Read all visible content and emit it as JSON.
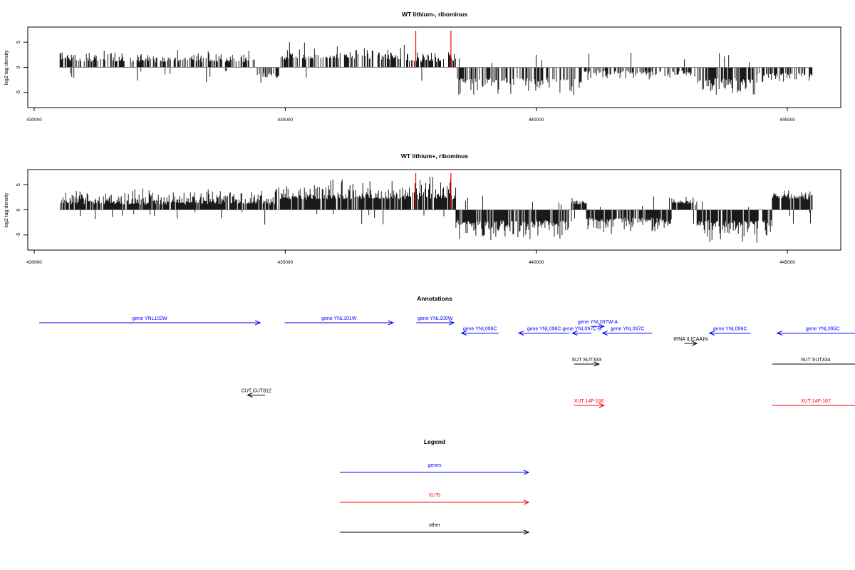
{
  "chart_data": [
    {
      "type": "bar",
      "title": "WT lithium-, ribominus",
      "ylabel": "log2 tag density",
      "xlim": [
        430000,
        446000
      ],
      "ylim": [
        -8,
        8
      ],
      "x_ticks": [
        "430000",
        "435000",
        "440000",
        "445000"
      ],
      "y_ticks": [
        "-5",
        "0",
        "5"
      ],
      "data_range": [
        430500,
        445500
      ],
      "segments": [
        {
          "from": 430500,
          "to": 434400,
          "dir": 1,
          "min": 1,
          "max": 3.5
        },
        {
          "from": 434400,
          "to": 434900,
          "dir": -1,
          "min": 1,
          "max": 3
        },
        {
          "from": 434900,
          "to": 437400,
          "dir": 1,
          "min": 1.5,
          "max": 5
        },
        {
          "from": 437400,
          "to": 438400,
          "dir": 1,
          "min": 1,
          "max": 3.5
        },
        {
          "from": 438400,
          "to": 440900,
          "dir": -1,
          "min": 2,
          "max": 6
        },
        {
          "from": 440900,
          "to": 443200,
          "dir": -1,
          "min": 0.5,
          "max": 2.5
        },
        {
          "from": 443200,
          "to": 444400,
          "dir": -1,
          "min": 2,
          "max": 7
        },
        {
          "from": 444400,
          "to": 445500,
          "dir": -1,
          "min": 1,
          "max": 3
        }
      ],
      "markers": [
        437600,
        438300
      ],
      "marker_color": "#ff0000"
    },
    {
      "type": "bar",
      "title": "WT lithium+, ribominus",
      "ylabel": "log2 tag density",
      "xlim": [
        430000,
        446000
      ],
      "ylim": [
        -8,
        8
      ],
      "x_ticks": [
        "430000",
        "435000",
        "440000",
        "445000"
      ],
      "y_ticks": [
        "-5",
        "0",
        "5"
      ],
      "data_range": [
        430500,
        445500
      ],
      "segments": [
        {
          "from": 430500,
          "to": 434800,
          "dir": 1,
          "min": 1,
          "max": 4.5
        },
        {
          "from": 434800,
          "to": 437400,
          "dir": 1,
          "min": 2,
          "max": 6.5
        },
        {
          "from": 437400,
          "to": 438400,
          "dir": 1,
          "min": 2,
          "max": 7.5
        },
        {
          "from": 438400,
          "to": 440700,
          "dir": -1,
          "min": 2,
          "max": 7
        },
        {
          "from": 440700,
          "to": 441000,
          "dir": 1,
          "min": 1,
          "max": 2.5
        },
        {
          "from": 441000,
          "to": 442700,
          "dir": -1,
          "min": 1.5,
          "max": 5
        },
        {
          "from": 442700,
          "to": 443200,
          "dir": 1,
          "min": 1,
          "max": 2.5
        },
        {
          "from": 443200,
          "to": 444700,
          "dir": -1,
          "min": 2,
          "max": 7
        },
        {
          "from": 444700,
          "to": 445500,
          "dir": 1,
          "min": 2,
          "max": 4
        }
      ],
      "markers": [
        437600,
        438300
      ],
      "marker_color": "#ff0000"
    }
  ],
  "annotations": {
    "title": "Annotations",
    "xlim": [
      430000,
      446000
    ],
    "features": [
      {
        "label": "gene YNL102W",
        "start": 430100,
        "end": 434500,
        "row": 0,
        "strand": "+",
        "kind": "gene"
      },
      {
        "label": "gene YNL101W",
        "start": 434990,
        "end": 437150,
        "row": 0,
        "strand": "+",
        "kind": "gene"
      },
      {
        "label": "gene YNL100W",
        "start": 437610,
        "end": 438360,
        "row": 0,
        "strand": "+",
        "kind": "gene"
      },
      {
        "label": "gene YNL099C",
        "start": 438510,
        "end": 439250,
        "row": 1,
        "strand": "-",
        "kind": "gene"
      },
      {
        "label": "gene YNL098C",
        "start": 439650,
        "end": 440660,
        "row": 1,
        "strand": "-",
        "kind": "gene"
      },
      {
        "label": "gene YNL097C-B",
        "start": 440720,
        "end": 441100,
        "row": 1,
        "strand": "-",
        "kind": "gene"
      },
      {
        "label": "gene YNL097W-A",
        "start": 441100,
        "end": 441350,
        "row": 0.35,
        "strand": "+",
        "kind": "gene"
      },
      {
        "label": "gene YNL097C",
        "start": 441320,
        "end": 442310,
        "row": 1,
        "strand": "-",
        "kind": "gene"
      },
      {
        "label": "tRNA tL(CAA)N",
        "start": 442950,
        "end": 443200,
        "row": 2,
        "strand": "+",
        "kind": "other"
      },
      {
        "label": "gene YNL096C",
        "start": 443450,
        "end": 444270,
        "row": 1,
        "strand": "-",
        "kind": "gene"
      },
      {
        "label": "gene YNL095C",
        "start": 444800,
        "end": 446600,
        "row": 1,
        "strand": "-",
        "kind": "gene"
      },
      {
        "label": "SUT SUT333",
        "start": 440750,
        "end": 441250,
        "row": 4,
        "strand": "+",
        "kind": "other"
      },
      {
        "label": "SUT SUT334",
        "start": 444700,
        "end": 446600,
        "row": 4,
        "strand": "+",
        "kind": "other"
      },
      {
        "label": "CUT CUT812",
        "start": 434250,
        "end": 434600,
        "row": 7,
        "strand": "-",
        "kind": "other"
      },
      {
        "label": "XUT 14F-166",
        "start": 440750,
        "end": 441350,
        "row": 8,
        "strand": "+",
        "kind": "xut"
      },
      {
        "label": "XUT 14F-167",
        "start": 444700,
        "end": 446600,
        "row": 8,
        "strand": "+",
        "kind": "xut"
      }
    ]
  },
  "legend": {
    "title": "Legend",
    "items": [
      {
        "label": "genes",
        "color": "#0000ff"
      },
      {
        "label": "XUTs",
        "color": "#ff0000"
      },
      {
        "label": "other",
        "color": "#000000"
      }
    ]
  },
  "colors": {
    "gene": "#0000ff",
    "xut": "#ff0000",
    "other": "#000000",
    "baseline": "#7f7f7f"
  }
}
